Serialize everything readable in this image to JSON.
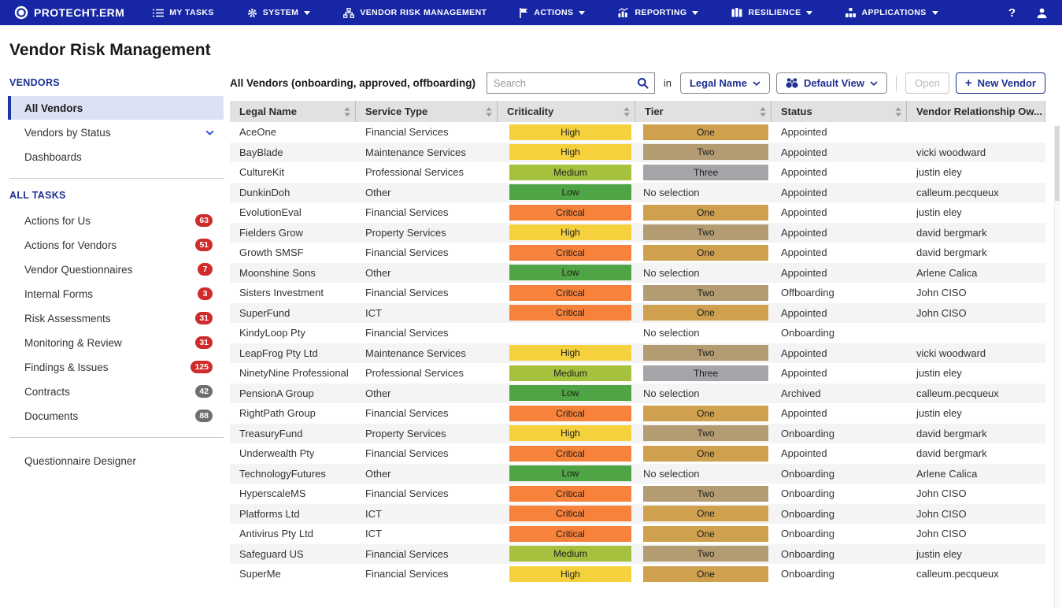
{
  "nav": {
    "brand": "PROTECHT.ERM",
    "items": [
      {
        "label": "MY TASKS",
        "icon": "tasks-icon",
        "dropdown": false
      },
      {
        "label": "SYSTEM",
        "icon": "gear-icon",
        "dropdown": true
      },
      {
        "label": "VENDOR RISK MANAGEMENT",
        "icon": "hierarchy-icon",
        "dropdown": false
      },
      {
        "label": "ACTIONS",
        "icon": "flag-icon",
        "dropdown": true
      },
      {
        "label": "REPORTING",
        "icon": "chart-icon",
        "dropdown": true
      },
      {
        "label": "RESILIENCE",
        "icon": "buildings-icon",
        "dropdown": true
      },
      {
        "label": "APPLICATIONS",
        "icon": "apps-icon",
        "dropdown": true
      }
    ],
    "help_label": "?"
  },
  "page": {
    "title": "Vendor Risk Management"
  },
  "sidebar": {
    "vendors_section": {
      "label": "VENDORS",
      "items": [
        {
          "label": "All Vendors",
          "active": true,
          "chevron": false
        },
        {
          "label": "Vendors by Status",
          "active": false,
          "chevron": true
        },
        {
          "label": "Dashboards",
          "active": false,
          "chevron": false
        }
      ]
    },
    "tasks_section": {
      "label": "ALL TASKS",
      "items": [
        {
          "label": "Actions for Us",
          "badge": "63",
          "badge_type": "red"
        },
        {
          "label": "Actions for Vendors",
          "badge": "51",
          "badge_type": "red"
        },
        {
          "label": "Vendor Questionnaires",
          "badge": "7",
          "badge_type": "red"
        },
        {
          "label": "Internal Forms",
          "badge": "3",
          "badge_type": "red"
        },
        {
          "label": "Risk Assessments",
          "badge": "31",
          "badge_type": "red"
        },
        {
          "label": "Monitoring & Review",
          "badge": "31",
          "badge_type": "red"
        },
        {
          "label": "Findings & Issues",
          "badge": "125",
          "badge_type": "red"
        },
        {
          "label": "Contracts",
          "badge": "42",
          "badge_type": "gray"
        },
        {
          "label": "Documents",
          "badge": "88",
          "badge_type": "gray"
        }
      ]
    },
    "footer_item": {
      "label": "Questionnaire Designer"
    }
  },
  "toolbar": {
    "list_label": "All Vendors (onboarding, approved, offboarding)",
    "search_placeholder": "Search",
    "in_label": "in",
    "field_selector": "Legal Name",
    "view_selector": "Default View",
    "open_button": "Open",
    "new_vendor_plus": "+",
    "new_vendor_button": "New Vendor"
  },
  "table": {
    "columns": [
      "Legal Name",
      "Service Type",
      "Criticality",
      "Tier",
      "Status",
      "Vendor Relationship Ow..."
    ],
    "no_selection_label": "No selection",
    "rows": [
      {
        "legal_name": "AceOne",
        "service_type": "Financial Services",
        "criticality": "High",
        "tier": "One",
        "status": "Appointed",
        "owner": ""
      },
      {
        "legal_name": "BayBlade",
        "service_type": "Maintenance Services",
        "criticality": "High",
        "tier": "Two",
        "status": "Appointed",
        "owner": "vicki woodward"
      },
      {
        "legal_name": "CultureKit",
        "service_type": "Professional Services",
        "criticality": "Medium",
        "tier": "Three",
        "status": "Appointed",
        "owner": "justin eley"
      },
      {
        "legal_name": "DunkinDoh",
        "service_type": "Other",
        "criticality": "Low",
        "tier": null,
        "status": "Appointed",
        "owner": "calleum.pecqueux"
      },
      {
        "legal_name": "EvolutionEval",
        "service_type": "Financial Services",
        "criticality": "Critical",
        "tier": "One",
        "status": "Appointed",
        "owner": "justin eley"
      },
      {
        "legal_name": "Fielders Grow",
        "service_type": "Property Services",
        "criticality": "High",
        "tier": "Two",
        "status": "Appointed",
        "owner": "david bergmark"
      },
      {
        "legal_name": "Growth SMSF",
        "service_type": "Financial Services",
        "criticality": "Critical",
        "tier": "One",
        "status": "Appointed",
        "owner": "david bergmark"
      },
      {
        "legal_name": "Moonshine Sons",
        "service_type": "Other",
        "criticality": "Low",
        "tier": null,
        "status": "Appointed",
        "owner": "Arlene Calica"
      },
      {
        "legal_name": "Sisters Investment",
        "service_type": "Financial Services",
        "criticality": "Critical",
        "tier": "Two",
        "status": "Offboarding",
        "owner": "John CISO"
      },
      {
        "legal_name": "SuperFund",
        "service_type": "ICT",
        "criticality": "Critical",
        "tier": "One",
        "status": "Appointed",
        "owner": "John CISO"
      },
      {
        "legal_name": "KindyLoop Pty",
        "service_type": "Financial Services",
        "criticality": null,
        "tier": null,
        "status": "Onboarding",
        "owner": ""
      },
      {
        "legal_name": "LeapFrog Pty Ltd",
        "service_type": "Maintenance Services",
        "criticality": "High",
        "tier": "Two",
        "status": "Appointed",
        "owner": "vicki woodward"
      },
      {
        "legal_name": "NinetyNine Professional",
        "service_type": "Professional Services",
        "criticality": "Medium",
        "tier": "Three",
        "status": "Appointed",
        "owner": "justin eley"
      },
      {
        "legal_name": "PensionA Group",
        "service_type": "Other",
        "criticality": "Low",
        "tier": null,
        "status": "Archived",
        "owner": "calleum.pecqueux"
      },
      {
        "legal_name": "RightPath Group",
        "service_type": "Financial Services",
        "criticality": "Critical",
        "tier": "One",
        "status": "Appointed",
        "owner": "justin eley"
      },
      {
        "legal_name": "TreasuryFund",
        "service_type": "Property Services",
        "criticality": "High",
        "tier": "Two",
        "status": "Onboarding",
        "owner": "david bergmark"
      },
      {
        "legal_name": "Underwealth Pty",
        "service_type": "Financial Services",
        "criticality": "Critical",
        "tier": "One",
        "status": "Appointed",
        "owner": "david bergmark"
      },
      {
        "legal_name": "TechnologyFutures",
        "service_type": "Other",
        "criticality": "Low",
        "tier": null,
        "status": "Onboarding",
        "owner": "Arlene Calica"
      },
      {
        "legal_name": "HyperscaleMS",
        "service_type": "Financial Services",
        "criticality": "Critical",
        "tier": "Two",
        "status": "Onboarding",
        "owner": "John CISO"
      },
      {
        "legal_name": "Platforms Ltd",
        "service_type": "ICT",
        "criticality": "Critical",
        "tier": "One",
        "status": "Onboarding",
        "owner": "John CISO"
      },
      {
        "legal_name": "Antivirus Pty Ltd",
        "service_type": "ICT",
        "criticality": "Critical",
        "tier": "One",
        "status": "Onboarding",
        "owner": "John CISO"
      },
      {
        "legal_name": "Safeguard US",
        "service_type": "Financial Services",
        "criticality": "Medium",
        "tier": "Two",
        "status": "Onboarding",
        "owner": "justin eley"
      },
      {
        "legal_name": "SuperMe",
        "service_type": "Financial Services",
        "criticality": "High",
        "tier": "One",
        "status": "Onboarding",
        "owner": "calleum.pecqueux"
      }
    ]
  },
  "colors": {
    "nav_bg": "#1726A4",
    "accent_blue": "#1F3193",
    "selected_item_bg": "#DCE2F6",
    "selected_item_border": "#2433A3",
    "badge_red": "#D02B2B",
    "badge_gray": "#6F6F6F",
    "criticality": {
      "High": "#F5D23D",
      "Medium": "#A6C13E",
      "Low": "#4FA445",
      "Critical": "#F6823B"
    },
    "tier": {
      "One": "#CFA14F",
      "Two": "#B49C72",
      "Three": "#A7A4A9"
    }
  }
}
